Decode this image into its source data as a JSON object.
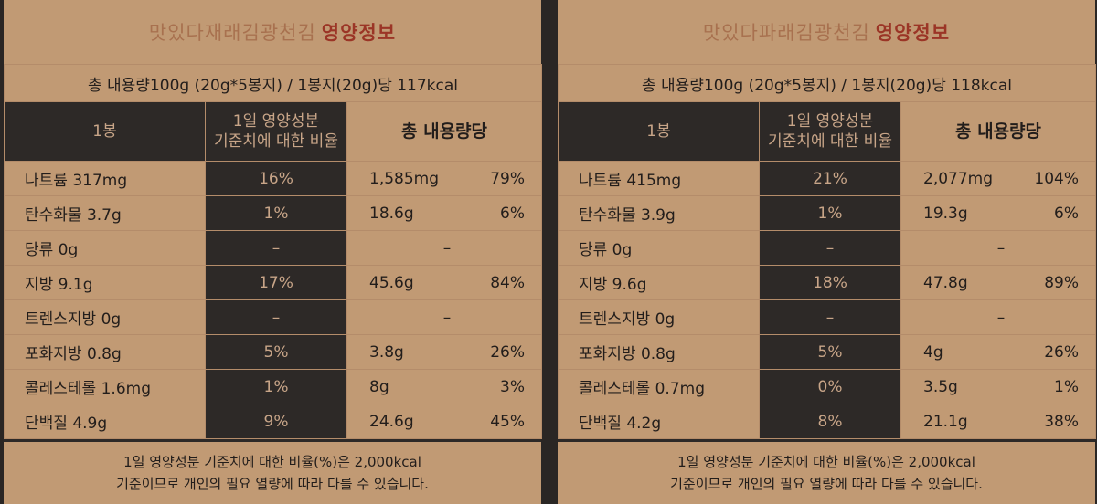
{
  "panels": [
    {
      "title_name": "맛있다재래김광천김",
      "title_suffix": "영양정보",
      "total_line": "총 내용량100g (20g*5봉지) / 1봉지(20g)당 117kcal",
      "col_per_pack": "1봉",
      "col_daily_1": "1일 영양성분",
      "col_daily_2": "기준치에 대한 비율",
      "col_total": "총 내용량당",
      "rows": [
        {
          "label": "나트륨 317mg",
          "pct": "16%",
          "total_amount": "1,585mg",
          "total_pct": "79%"
        },
        {
          "label": "탄수화물 3.7g",
          "pct": "1%",
          "total_amount": "18.6g",
          "total_pct": "6%"
        },
        {
          "label": "당류 0g",
          "pct": "–",
          "total_dash": "–"
        },
        {
          "label": "지방 9.1g",
          "pct": "17%",
          "total_amount": "45.6g",
          "total_pct": "84%"
        },
        {
          "label": "트렌스지방 0g",
          "pct": "–",
          "total_dash": "–"
        },
        {
          "label": "포화지방 0.8g",
          "pct": "5%",
          "total_amount": "3.8g",
          "total_pct": "26%"
        },
        {
          "label": "콜레스테롤 1.6mg",
          "pct": "1%",
          "total_amount": "8g",
          "total_pct": "3%"
        },
        {
          "label": "단백질 4.9g",
          "pct": "9%",
          "total_amount": "24.6g",
          "total_pct": "45%"
        }
      ],
      "footer_1": "1일 영양성분 기준치에 대한 비율(%)은 2,000kcal",
      "footer_2": "기준이므로 개인의 필요 열량에 따라 다를 수 있습니다."
    },
    {
      "title_name": "맛있다파래김광천김",
      "title_suffix": "영양정보",
      "total_line": "총 내용량100g (20g*5봉지) / 1봉지(20g)당 118kcal",
      "col_per_pack": "1봉",
      "col_daily_1": "1일 영양성분",
      "col_daily_2": "기준치에 대한 비율",
      "col_total": "총 내용량당",
      "rows": [
        {
          "label": "나트륨 415mg",
          "pct": "21%",
          "total_amount": "2,077mg",
          "total_pct": "104%"
        },
        {
          "label": "탄수화물 3.9g",
          "pct": "1%",
          "total_amount": "19.3g",
          "total_pct": "6%"
        },
        {
          "label": "당류 0g",
          "pct": "–",
          "total_dash": "–"
        },
        {
          "label": "지방 9.6g",
          "pct": "18%",
          "total_amount": "47.8g",
          "total_pct": "89%"
        },
        {
          "label": "트렌스지방 0g",
          "pct": "–",
          "total_dash": "–"
        },
        {
          "label": "포화지방 0.8g",
          "pct": "5%",
          "total_amount": "4g",
          "total_pct": "26%"
        },
        {
          "label": "콜레스테롤 0.7mg",
          "pct": "0%",
          "total_amount": "3.5g",
          "total_pct": "1%"
        },
        {
          "label": "단백질 4.2g",
          "pct": "8%",
          "total_amount": "21.1g",
          "total_pct": "38%"
        }
      ],
      "footer_1": "1일 영양성분 기준치에 대한 비율(%)은 2,000kcal",
      "footer_2": "기준이므로 개인의 필요 열량에 따라 다를 수 있습니다."
    }
  ]
}
